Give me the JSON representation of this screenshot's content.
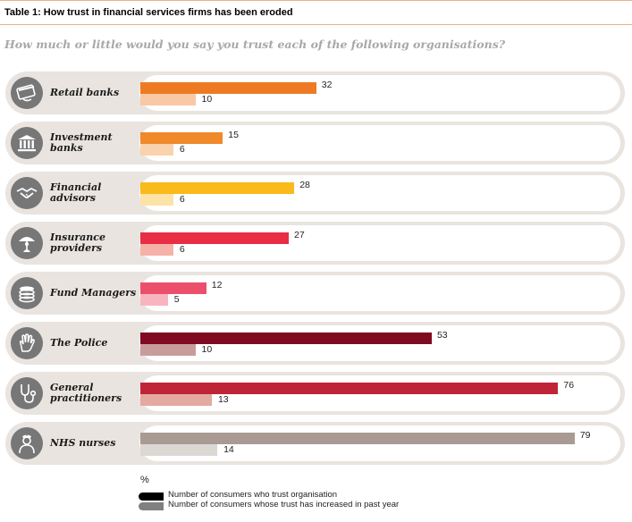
{
  "header": {
    "title": "Table 1: How trust in financial services firms has been eroded",
    "question": "How much or little would you say you trust each of the following organisations?"
  },
  "chart_data": {
    "type": "bar",
    "orientation": "horizontal",
    "categories": [
      "Retail banks",
      "Investment banks",
      "Financial advisors",
      "Insurance providers",
      "Fund Managers",
      "The Police",
      "General practitioners",
      "NHS nurses"
    ],
    "category_display": [
      "Retail banks",
      "Investment\nbanks",
      "Financial\nadvisors",
      "Insurance\nproviders",
      "Fund Managers",
      "The Police",
      "General\npractitioners",
      "NHS nurses"
    ],
    "icons": [
      "credit-card-icon",
      "bank-building-icon",
      "handshake-icon",
      "umbrella-person-icon",
      "coin-stack-icon",
      "hand-icon",
      "stethoscope-icon",
      "nurse-icon"
    ],
    "series": [
      {
        "name": "Number of consumers who trust organisation",
        "values": [
          32,
          15,
          28,
          27,
          12,
          53,
          76,
          79
        ]
      },
      {
        "name": "Number of consumers whose trust has increased in past year",
        "values": [
          10,
          6,
          6,
          6,
          5,
          10,
          13,
          14
        ]
      }
    ],
    "colors_trust": [
      "#ee7b24",
      "#f0892a",
      "#f8bb1b",
      "#e82d44",
      "#ec4f6c",
      "#7f0a21",
      "#c02437",
      "#a99b94"
    ],
    "colors_increase": [
      "#f9c8a5",
      "#fad2ad",
      "#fde3a6",
      "#f6b2a8",
      "#f8b5bf",
      "#c99c9c",
      "#e4a9a1",
      "#dcd8d4"
    ],
    "xlabel": "%",
    "xlim": [
      0,
      90
    ],
    "legend_position": "bottom-left",
    "legend_colors": [
      "#000000",
      "#808080"
    ]
  }
}
